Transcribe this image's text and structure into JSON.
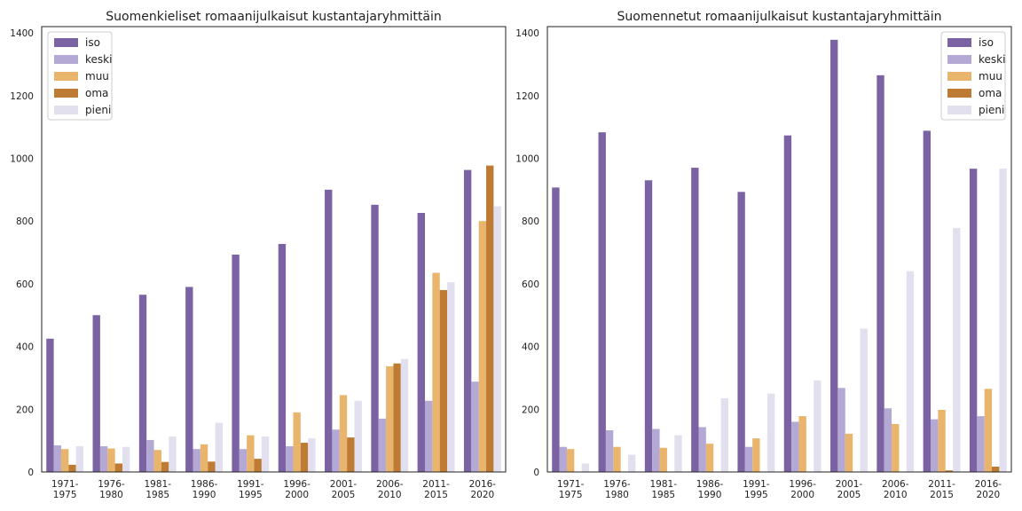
{
  "chart_data": [
    {
      "type": "bar",
      "title": "Suomenkieliset romaanijulkaisut kustantajaryhmittäin",
      "xlabel": "",
      "ylabel": "",
      "ylim": [
        0,
        1420
      ],
      "yticks": [
        "0",
        "200",
        "400",
        "600",
        "800",
        "1000",
        "1200",
        "1400"
      ],
      "grid": false,
      "legend_position": "top-left",
      "categories": [
        [
          "1971-",
          "1975"
        ],
        [
          "1976-",
          "1980"
        ],
        [
          "1981-",
          "1985"
        ],
        [
          "1986-",
          "1990"
        ],
        [
          "1991-",
          "1995"
        ],
        [
          "1996-",
          "2000"
        ],
        [
          "2001-",
          "2005"
        ],
        [
          "2006-",
          "2010"
        ],
        [
          "2011-",
          "2015"
        ],
        [
          "2016-",
          "2020"
        ]
      ],
      "series": [
        {
          "name": "iso",
          "color": "#7b62a3",
          "values": [
            425,
            500,
            565,
            590,
            693,
            727,
            900,
            852,
            826,
            963
          ]
        },
        {
          "name": "keski",
          "color": "#b4a9d4",
          "values": [
            85,
            82,
            102,
            73,
            73,
            82,
            135,
            170,
            227,
            288
          ]
        },
        {
          "name": "muu",
          "color": "#e9b46b",
          "values": [
            73,
            75,
            70,
            88,
            117,
            190,
            245,
            337,
            635,
            800
          ]
        },
        {
          "name": "oma",
          "color": "#bd7b34",
          "values": [
            23,
            27,
            32,
            33,
            42,
            93,
            110,
            346,
            580,
            977
          ]
        },
        {
          "name": "pieni",
          "color": "#e2e0ef",
          "values": [
            82,
            80,
            113,
            157,
            113,
            107,
            227,
            360,
            605,
            847
          ]
        }
      ]
    },
    {
      "type": "bar",
      "title": "Suomennetut romaanijulkaisut kustantajaryhmittäin",
      "xlabel": "",
      "ylabel": "",
      "ylim": [
        0,
        1420
      ],
      "yticks": [
        "0",
        "200",
        "400",
        "600",
        "800",
        "1000",
        "1200",
        "1400"
      ],
      "grid": false,
      "legend_position": "top-right",
      "categories": [
        [
          "1971-",
          "1975"
        ],
        [
          "1976-",
          "1980"
        ],
        [
          "1981-",
          "1985"
        ],
        [
          "1986-",
          "1990"
        ],
        [
          "1991-",
          "1995"
        ],
        [
          "1996-",
          "2000"
        ],
        [
          "2001-",
          "2005"
        ],
        [
          "2006-",
          "2010"
        ],
        [
          "2011-",
          "2015"
        ],
        [
          "2016-",
          "2020"
        ]
      ],
      "series": [
        {
          "name": "iso",
          "color": "#7b62a3",
          "values": [
            907,
            1083,
            930,
            970,
            893,
            1073,
            1378,
            1265,
            1088,
            967
          ]
        },
        {
          "name": "keski",
          "color": "#b4a9d4",
          "values": [
            80,
            133,
            137,
            143,
            80,
            160,
            268,
            203,
            168,
            178
          ]
        },
        {
          "name": "muu",
          "color": "#e9b46b",
          "values": [
            73,
            80,
            77,
            90,
            107,
            178,
            122,
            153,
            198,
            265
          ]
        },
        {
          "name": "oma",
          "color": "#bd7b34",
          "values": [
            0,
            0,
            0,
            0,
            0,
            0,
            0,
            0,
            5,
            17
          ]
        },
        {
          "name": "pieni",
          "color": "#e2e0ef",
          "values": [
            27,
            55,
            117,
            235,
            250,
            292,
            457,
            640,
            778,
            967
          ]
        }
      ]
    }
  ]
}
